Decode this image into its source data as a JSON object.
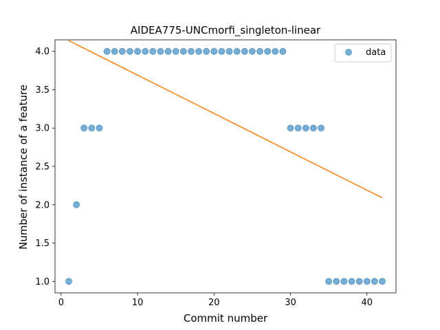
{
  "chart_data": {
    "type": "scatter",
    "title": "AIDEA775-UNCmorfi_singleton-linear",
    "xlabel": "Commit number",
    "ylabel": "Number of instance of a feature",
    "xlim": [
      -0.8,
      43.8
    ],
    "ylim": [
      0.85,
      4.15
    ],
    "xticks": [
      0,
      10,
      20,
      30,
      40
    ],
    "yticks": [
      1.0,
      1.5,
      2.0,
      2.5,
      3.0,
      3.5,
      4.0
    ],
    "xtick_labels": [
      "0",
      "10",
      "20",
      "30",
      "40"
    ],
    "ytick_labels": [
      "1.0",
      "1.5",
      "2.0",
      "2.5",
      "3.0",
      "3.5",
      "4.0"
    ],
    "grid": false,
    "legend_position": "top-right",
    "series": [
      {
        "name": "data",
        "kind": "scatter",
        "color": "#1f77b4",
        "x": [
          1,
          2,
          3,
          4,
          5,
          6,
          7,
          8,
          9,
          10,
          11,
          12,
          13,
          14,
          15,
          16,
          17,
          18,
          19,
          20,
          21,
          22,
          23,
          24,
          25,
          26,
          27,
          28,
          29,
          30,
          31,
          32,
          33,
          34,
          35,
          36,
          37,
          38,
          39,
          40,
          41,
          42
        ],
        "y": [
          1,
          2,
          3,
          3,
          3,
          4,
          4,
          4,
          4,
          4,
          4,
          4,
          4,
          4,
          4,
          4,
          4,
          4,
          4,
          4,
          4,
          4,
          4,
          4,
          4,
          4,
          4,
          4,
          4,
          3,
          3,
          3,
          3,
          3,
          1,
          1,
          1,
          1,
          1,
          1,
          1,
          1
        ]
      },
      {
        "kind": "line",
        "color": "#ff7f0e",
        "x": [
          1,
          42
        ],
        "y": [
          4.14,
          2.09
        ]
      }
    ]
  }
}
